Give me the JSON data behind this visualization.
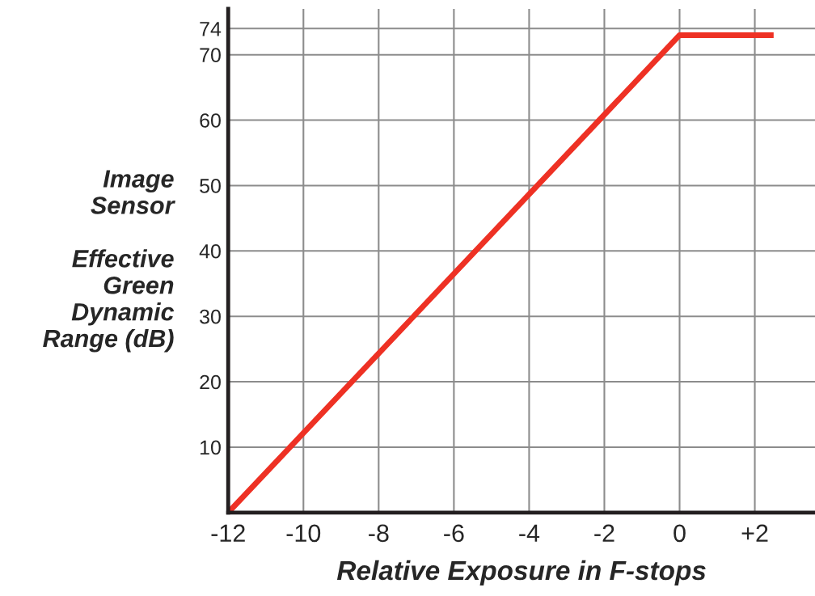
{
  "chart_data": {
    "type": "line",
    "xlabel": "Relative Exposure in F-stops",
    "ylabel": "Image\nSensor\n\nEffective\nGreen\nDynamic\nRange (dB)",
    "x": [
      -12,
      0,
      2.5
    ],
    "series": [
      {
        "color": "#ee3124",
        "values": [
          0,
          73,
          73
        ]
      }
    ],
    "xlim": [
      -12,
      3.6
    ],
    "ylim": [
      0,
      77
    ],
    "xticks": [
      -12,
      -10,
      -8,
      -6,
      -4,
      -2,
      0,
      {
        "value": 2,
        "label": "+2"
      }
    ],
    "yticks": [
      {
        "value": 0,
        "label": null
      },
      10,
      20,
      30,
      40,
      50,
      60,
      70,
      74
    ],
    "grid": true,
    "marker": "none",
    "line_style": "solid"
  }
}
